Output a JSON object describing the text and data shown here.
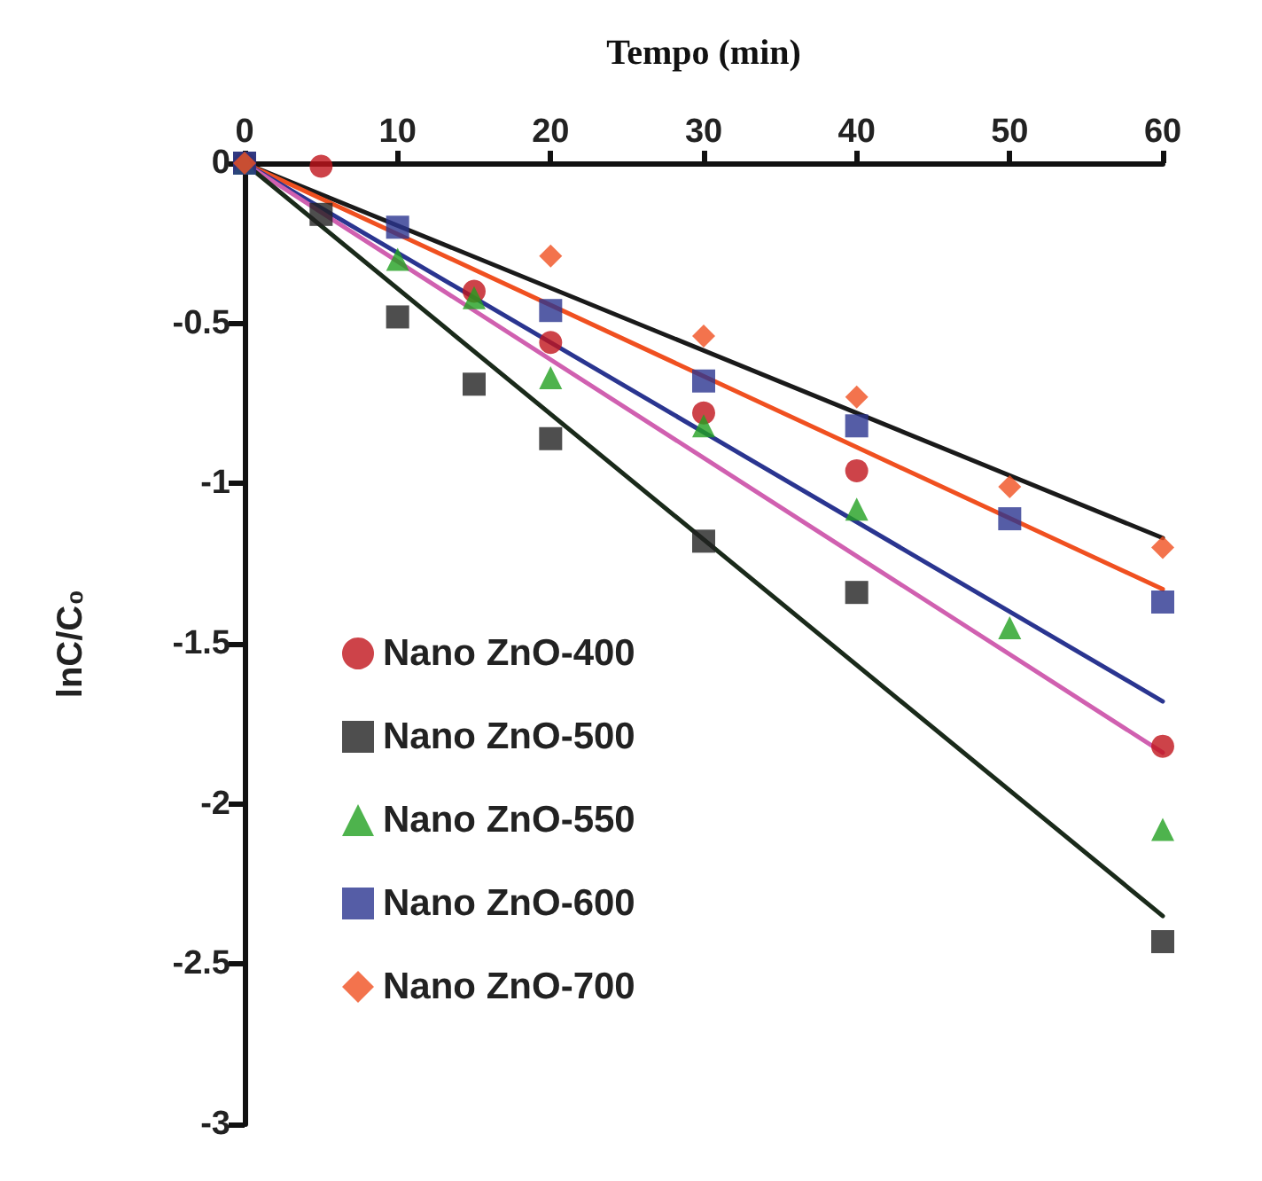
{
  "chart_data": {
    "type": "scatter",
    "xlabel": "Tempo (min)",
    "ylabel": "lnC/C₀",
    "xlim": [
      0,
      60
    ],
    "xticks": [
      0,
      10,
      20,
      30,
      40,
      50,
      60
    ],
    "ylim": [
      -3,
      0
    ],
    "yticks": [
      -3,
      -2.5,
      -2,
      -1.5,
      -1,
      -0.5,
      0
    ],
    "grid": false,
    "legend": "left",
    "series": [
      {
        "name": "Nano ZnO-400",
        "color": "#c0141c",
        "marker": "circle",
        "x": [
          0,
          5,
          15,
          20,
          30,
          40,
          60
        ],
        "values": [
          0,
          -0.01,
          -0.4,
          -0.56,
          -0.78,
          -0.96,
          -1.82
        ]
      },
      {
        "name": "Nano ZnO-500",
        "color": "#222222",
        "marker": "square",
        "x": [
          0,
          5,
          10,
          15,
          20,
          30,
          40,
          60
        ],
        "values": [
          0,
          -0.16,
          -0.48,
          -0.69,
          -0.86,
          -1.18,
          -1.34,
          -2.43
        ]
      },
      {
        "name": "Nano ZnO-550",
        "color": "#22a020",
        "marker": "triangle",
        "x": [
          0,
          10,
          15,
          20,
          30,
          40,
          50,
          60
        ],
        "values": [
          0,
          -0.3,
          -0.42,
          -0.67,
          -0.82,
          -1.08,
          -1.45,
          -2.08
        ]
      },
      {
        "name": "Nano ZnO-600",
        "color": "#2a3590",
        "marker": "square",
        "x": [
          0,
          10,
          20,
          30,
          40,
          50,
          60
        ],
        "values": [
          0,
          -0.2,
          -0.46,
          -0.68,
          -0.82,
          -1.11,
          -1.37
        ]
      },
      {
        "name": "Nano ZnO-700",
        "color": "#f05020",
        "marker": "diamond",
        "x": [
          0,
          20,
          30,
          40,
          50,
          60
        ],
        "values": [
          0,
          -0.29,
          -0.54,
          -0.73,
          -1.01,
          -1.2
        ]
      },
      {
        "type": "line",
        "color": "#1a1a1a",
        "marker": "none",
        "line_style": "solid",
        "x": [
          0,
          60
        ],
        "values": [
          0,
          -1.17
        ]
      },
      {
        "type": "line",
        "color": "#f05020",
        "marker": "none",
        "line_style": "solid",
        "x": [
          0,
          60
        ],
        "values": [
          0,
          -1.33
        ]
      },
      {
        "type": "line",
        "color": "#2a3590",
        "marker": "none",
        "line_style": "solid",
        "x": [
          0,
          60
        ],
        "values": [
          0,
          -1.68
        ]
      },
      {
        "type": "line",
        "color": "#d060b0",
        "marker": "none",
        "line_style": "solid",
        "x": [
          0,
          60
        ],
        "values": [
          0,
          -1.84
        ]
      },
      {
        "type": "line",
        "color": "#1a2a1a",
        "marker": "none",
        "line_style": "solid",
        "x": [
          0,
          60
        ],
        "values": [
          0,
          -2.35
        ]
      }
    ]
  }
}
